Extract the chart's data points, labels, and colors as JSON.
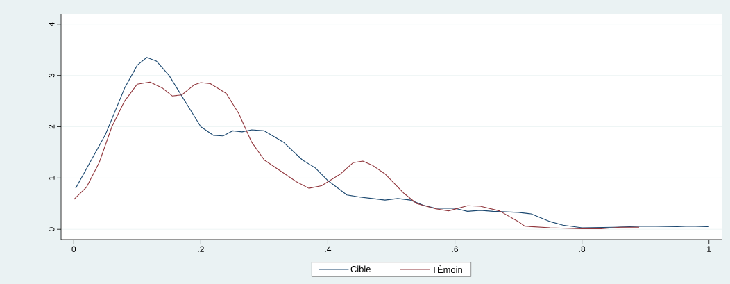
{
  "chart_data": {
    "type": "line",
    "xlim": [
      -0.02,
      1.02
    ],
    "ylim": [
      -0.2,
      4.2
    ],
    "xticks": [
      0,
      {
        "value": 0.2,
        "label": ".2"
      },
      {
        "value": 0.4,
        "label": ".4"
      },
      {
        "value": 0.6,
        "label": ".6"
      },
      {
        "value": 0.8,
        "label": ".8"
      },
      1
    ],
    "yticks": [
      0,
      1,
      2,
      3,
      4
    ],
    "grid": "y",
    "legend": "bottom",
    "series": [
      {
        "name": "Cible",
        "color": "#1a476f",
        "x": [
          0.003,
          0.05,
          0.08,
          0.1,
          0.115,
          0.13,
          0.15,
          0.18,
          0.2,
          0.22,
          0.235,
          0.25,
          0.265,
          0.28,
          0.3,
          0.33,
          0.36,
          0.38,
          0.4,
          0.43,
          0.45,
          0.47,
          0.49,
          0.51,
          0.53,
          0.55,
          0.57,
          0.6,
          0.62,
          0.64,
          0.66,
          0.68,
          0.7,
          0.72,
          0.75,
          0.77,
          0.8,
          0.85,
          0.9,
          0.95,
          0.97,
          1.0
        ],
        "values": [
          0.8,
          1.85,
          2.75,
          3.2,
          3.35,
          3.28,
          3.0,
          2.4,
          2.0,
          1.83,
          1.82,
          1.92,
          1.9,
          1.94,
          1.92,
          1.7,
          1.35,
          1.2,
          0.95,
          0.67,
          0.63,
          0.6,
          0.57,
          0.6,
          0.57,
          0.47,
          0.41,
          0.41,
          0.35,
          0.37,
          0.35,
          0.34,
          0.33,
          0.3,
          0.15,
          0.08,
          0.03,
          0.04,
          0.06,
          0.05,
          0.06,
          0.05
        ]
      },
      {
        "name": "TÈmoin",
        "color": "#90353b",
        "x": [
          0.0,
          0.02,
          0.04,
          0.06,
          0.08,
          0.1,
          0.12,
          0.14,
          0.155,
          0.17,
          0.19,
          0.2,
          0.215,
          0.24,
          0.26,
          0.28,
          0.3,
          0.33,
          0.35,
          0.37,
          0.39,
          0.42,
          0.44,
          0.455,
          0.47,
          0.49,
          0.52,
          0.54,
          0.57,
          0.59,
          0.62,
          0.64,
          0.67,
          0.7,
          0.71,
          0.75,
          0.8,
          0.83,
          0.86,
          0.89
        ],
        "values": [
          0.58,
          0.82,
          1.3,
          2.0,
          2.5,
          2.83,
          2.87,
          2.75,
          2.6,
          2.62,
          2.82,
          2.86,
          2.84,
          2.65,
          2.25,
          1.7,
          1.35,
          1.1,
          0.93,
          0.8,
          0.85,
          1.08,
          1.3,
          1.33,
          1.25,
          1.08,
          0.7,
          0.5,
          0.4,
          0.36,
          0.46,
          0.45,
          0.36,
          0.15,
          0.06,
          0.03,
          0.01,
          0.01,
          0.04,
          0.04
        ]
      }
    ]
  }
}
